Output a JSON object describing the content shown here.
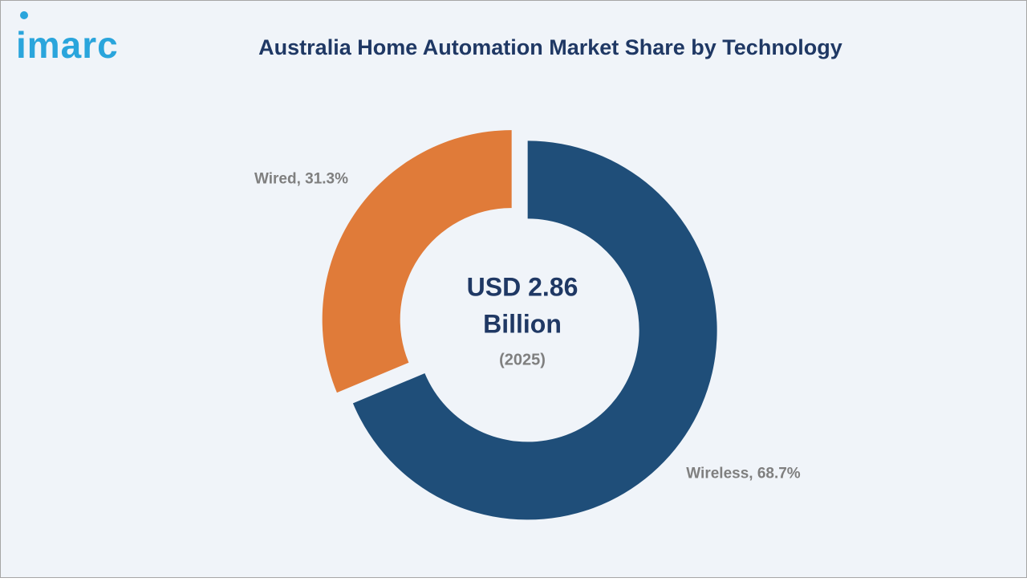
{
  "logo": "imarc",
  "chart_data": {
    "type": "donut",
    "title": "Australia Home Automation Market Share by Technology",
    "values": [
      68.7,
      31.3
    ],
    "value_labels": [
      "Wireless, 68.7%",
      "Wired, 31.3%"
    ],
    "colors": [
      "#1f4e79",
      "#e07b39"
    ],
    "center_text": [
      "USD 2.86",
      "Billion",
      "(2025)"
    ]
  }
}
